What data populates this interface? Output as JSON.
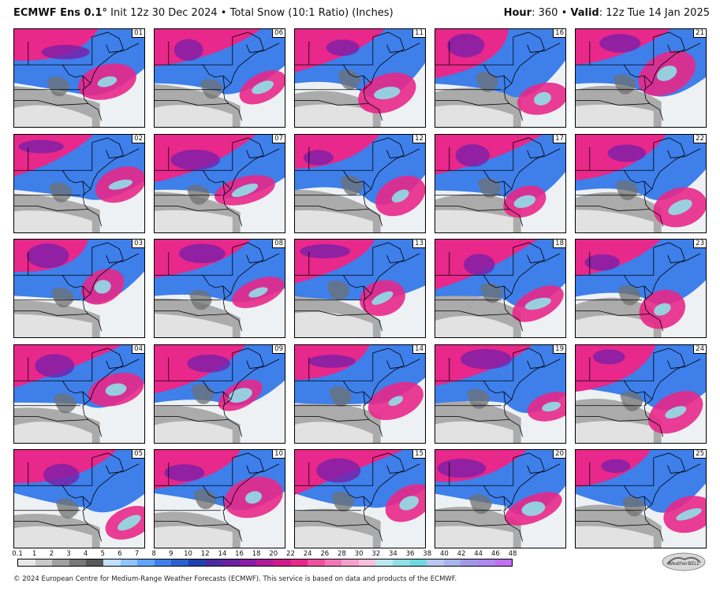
{
  "header": {
    "model": "ECMWF Ens 0.1°",
    "init": "Init 12z 30 Dec 2024",
    "separator": "•",
    "product": "Total Snow (10:1 Ratio) (Inches)",
    "hour_label": "Hour",
    "hour_value": ": 360",
    "valid_label": "Valid",
    "valid_value": ": 12z Tue 14 Jan 2025"
  },
  "panels": [
    "01",
    "06",
    "11",
    "16",
    "21",
    "02",
    "07",
    "12",
    "17",
    "22",
    "03",
    "08",
    "13",
    "18",
    "23",
    "04",
    "09",
    "14",
    "19",
    "24",
    "05",
    "10",
    "15",
    "20",
    "25"
  ],
  "legend": {
    "ticks": [
      "0.1",
      "1",
      "2",
      "3",
      "4",
      "5",
      "6",
      "7",
      "8",
      "9",
      "10",
      "12",
      "14",
      "16",
      "18",
      "20",
      "22",
      "24",
      "26",
      "28",
      "30",
      "32",
      "34",
      "36",
      "38",
      "40",
      "42",
      "44",
      "46",
      "48"
    ],
    "colors": [
      "#e8e8e8",
      "#c8c8c8",
      "#a0a0a0",
      "#787878",
      "#585858",
      "#bfe0ff",
      "#8fc4ff",
      "#5fa4ff",
      "#3e7fea",
      "#2a5fd0",
      "#2040b0",
      "#4a2aa0",
      "#6a1ea0",
      "#8a1aa8",
      "#b01a9a",
      "#d01a8a",
      "#e8288a",
      "#f050a0",
      "#f078b8",
      "#f4a0cc",
      "#f8c0dc",
      "#c0e8f0",
      "#90e0e8",
      "#70d8e0",
      "#b8c8f0",
      "#a8b4ec",
      "#a098e8",
      "#b088f0",
      "#c070f0"
    ],
    "tick_color_start": "#ffffff"
  },
  "logo": {
    "text": "WeatherBELL"
  },
  "footer": {
    "copyright": "© 2024 European Centre for Medium-Range Weather Forecasts (ECMWF). This service is based on data and products of the ECMWF."
  }
}
